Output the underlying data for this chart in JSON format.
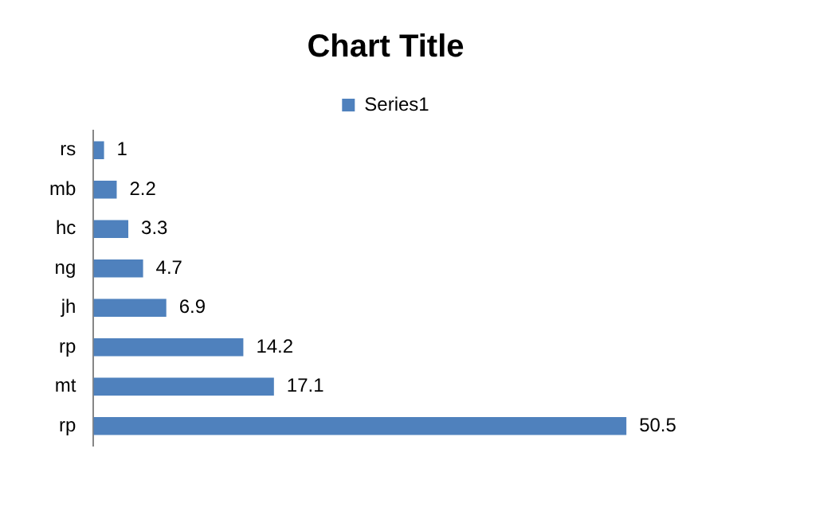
{
  "chart_data": {
    "type": "bar",
    "orientation": "horizontal",
    "title": "Chart Title",
    "categories": [
      "rs",
      "mb",
      "hc",
      "ng",
      "jh",
      "rp",
      "mt",
      "rp"
    ],
    "series": [
      {
        "name": "Series1",
        "color": "#4f81bd",
        "values": [
          1,
          2.2,
          3.3,
          4.7,
          6.9,
          14.2,
          17.1,
          50.5
        ]
      }
    ],
    "data_labels": true,
    "legend": "top",
    "grid": false,
    "tick_labels": "y"
  }
}
